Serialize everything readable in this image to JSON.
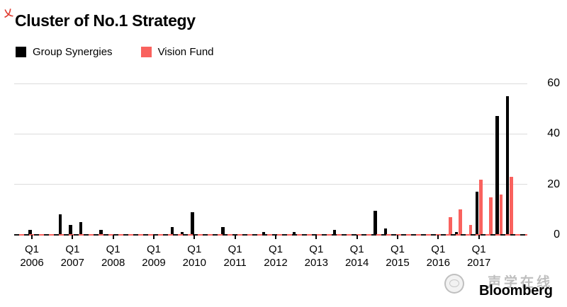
{
  "title": "Cluster of No.1 Strategy",
  "legend": {
    "items": [
      {
        "label": "Group Synergies",
        "color": "#000000"
      },
      {
        "label": "Vision Fund",
        "color": "#f9625e"
      }
    ]
  },
  "watermark": {
    "corner_glyph": "乂",
    "site_text": "声学在线",
    "brand": "Bloomberg"
  },
  "colors": {
    "group_synergies": "#000000",
    "vision_fund": "#f9625e",
    "gridline": "#dcdcdc",
    "axis_text": "#000000"
  },
  "x_axis": {
    "tick_quarter_label": "Q1",
    "years": [
      "2006",
      "2007",
      "2008",
      "2009",
      "2010",
      "2011",
      "2012",
      "2013",
      "2014",
      "2015",
      "2016",
      "2017"
    ]
  },
  "y_axis": {
    "ticks": [
      0,
      20,
      40,
      60
    ],
    "side": "right"
  },
  "chart_data": {
    "type": "bar",
    "title": "Cluster of No.1 Strategy",
    "xlabel": "",
    "ylabel": "",
    "ylim": [
      0,
      60
    ],
    "yticks": [
      0,
      20,
      40,
      60
    ],
    "grid": "horizontal",
    "legend_position": "top-left",
    "categories": [
      "Q1 2006",
      "Q2 2006",
      "Q3 2006",
      "Q4 2006",
      "Q1 2007",
      "Q2 2007",
      "Q3 2007",
      "Q4 2007",
      "Q1 2008",
      "Q2 2008",
      "Q3 2008",
      "Q4 2008",
      "Q1 2009",
      "Q2 2009",
      "Q3 2009",
      "Q4 2009",
      "Q1 2010",
      "Q2 2010",
      "Q3 2010",
      "Q4 2010",
      "Q1 2011",
      "Q2 2011",
      "Q3 2011",
      "Q4 2011",
      "Q1 2012",
      "Q2 2012",
      "Q3 2012",
      "Q4 2012",
      "Q1 2013",
      "Q2 2013",
      "Q3 2013",
      "Q4 2013",
      "Q1 2014",
      "Q2 2014",
      "Q3 2014",
      "Q4 2014",
      "Q1 2015",
      "Q2 2015",
      "Q3 2015",
      "Q4 2015",
      "Q1 2016",
      "Q2 2016",
      "Q3 2016",
      "Q4 2016",
      "Q1 2017",
      "Q2 2017",
      "Q3 2017",
      "Q4 2017"
    ],
    "series": [
      {
        "name": "Group Synergies",
        "color": "#000000",
        "values": [
          2,
          0,
          0,
          8,
          4,
          5,
          0,
          2,
          0,
          0,
          0,
          0,
          0,
          0,
          3,
          1,
          9,
          0,
          0,
          3,
          0,
          0,
          0,
          1,
          0,
          0,
          1,
          0,
          0,
          0,
          2,
          0,
          0,
          0,
          9.5,
          2.5,
          0,
          0,
          0,
          0,
          0,
          0,
          1,
          0,
          17,
          0,
          47,
          55
        ]
      },
      {
        "name": "Vision Fund",
        "color": "#f9625e",
        "values": [
          0,
          0,
          0,
          0,
          0,
          0,
          0,
          0,
          0,
          0,
          0,
          0,
          0,
          0,
          0,
          0,
          0,
          0,
          0,
          0,
          0,
          0,
          0,
          0,
          0,
          0,
          0,
          0,
          0,
          0,
          0,
          0,
          0,
          0,
          0,
          0,
          0,
          0,
          0,
          0,
          0,
          7,
          10,
          4,
          22,
          15,
          16,
          23
        ]
      }
    ]
  }
}
